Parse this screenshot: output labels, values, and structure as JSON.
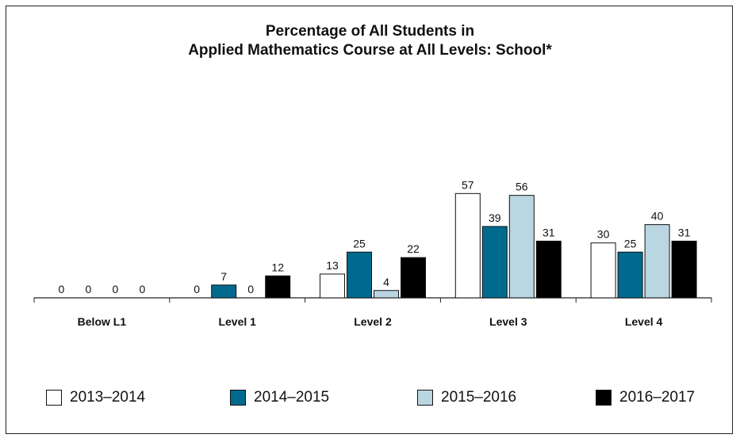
{
  "chart_data": {
    "type": "bar",
    "title": "Percentage of All Students in Applied Mathematics Course at All Levels: School*",
    "title_lines": [
      "Percentage of All Students in",
      "Applied Mathematics Course at All Levels: School*"
    ],
    "categories": [
      "Below L1",
      "Level 1",
      "Level 2",
      "Level 3",
      "Level 4"
    ],
    "series": [
      {
        "name": "2013–2014",
        "color": "#ffffff",
        "values": [
          0,
          0,
          13,
          57,
          30
        ]
      },
      {
        "name": "2014–2015",
        "color": "#006a8e",
        "values": [
          0,
          7,
          25,
          39,
          25
        ]
      },
      {
        "name": "2015–2016",
        "color": "#b9d6e2",
        "values": [
          0,
          0,
          4,
          56,
          40
        ]
      },
      {
        "name": "2016–2017",
        "color": "#000000",
        "values": [
          0,
          12,
          22,
          31,
          31
        ]
      }
    ],
    "xlabel": "",
    "ylabel": "",
    "ylim": [
      0,
      100
    ],
    "grid": false,
    "legend_position": "bottom"
  }
}
